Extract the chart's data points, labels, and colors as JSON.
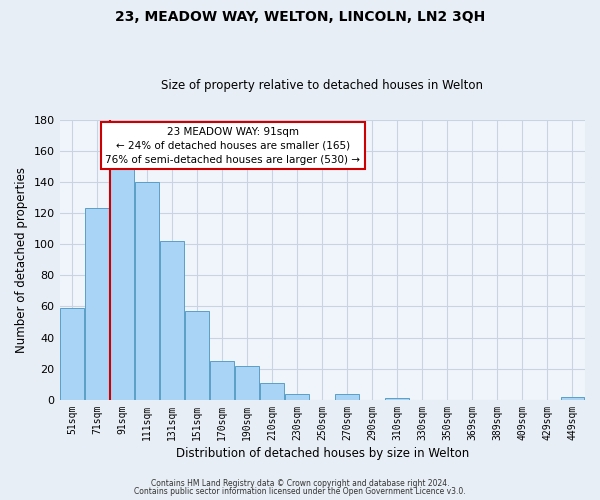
{
  "title": "23, MEADOW WAY, WELTON, LINCOLN, LN2 3QH",
  "subtitle": "Size of property relative to detached houses in Welton",
  "xlabel": "Distribution of detached houses by size in Welton",
  "ylabel": "Number of detached properties",
  "categories": [
    "51sqm",
    "71sqm",
    "91sqm",
    "111sqm",
    "131sqm",
    "151sqm",
    "170sqm",
    "190sqm",
    "210sqm",
    "230sqm",
    "250sqm",
    "270sqm",
    "290sqm",
    "310sqm",
    "330sqm",
    "350sqm",
    "369sqm",
    "389sqm",
    "409sqm",
    "429sqm",
    "449sqm"
  ],
  "values": [
    59,
    123,
    151,
    140,
    102,
    57,
    25,
    22,
    11,
    4,
    0,
    4,
    0,
    1,
    0,
    0,
    0,
    0,
    0,
    0,
    2
  ],
  "bar_color": "#aad4f5",
  "bar_edge_color": "#5a9fc8",
  "highlight_color": "#cc0000",
  "highlight_index": 2,
  "ylim": [
    0,
    180
  ],
  "yticks": [
    0,
    20,
    40,
    60,
    80,
    100,
    120,
    140,
    160,
    180
  ],
  "annotation_title": "23 MEADOW WAY: 91sqm",
  "annotation_line1": "← 24% of detached houses are smaller (165)",
  "annotation_line2": "76% of semi-detached houses are larger (530) →",
  "footer_line1": "Contains HM Land Registry data © Crown copyright and database right 2024.",
  "footer_line2": "Contains public sector information licensed under the Open Government Licence v3.0.",
  "background_color": "#e8eef5",
  "plot_bg_color": "#f0f5fb",
  "grid_color": "#c8d4e4"
}
